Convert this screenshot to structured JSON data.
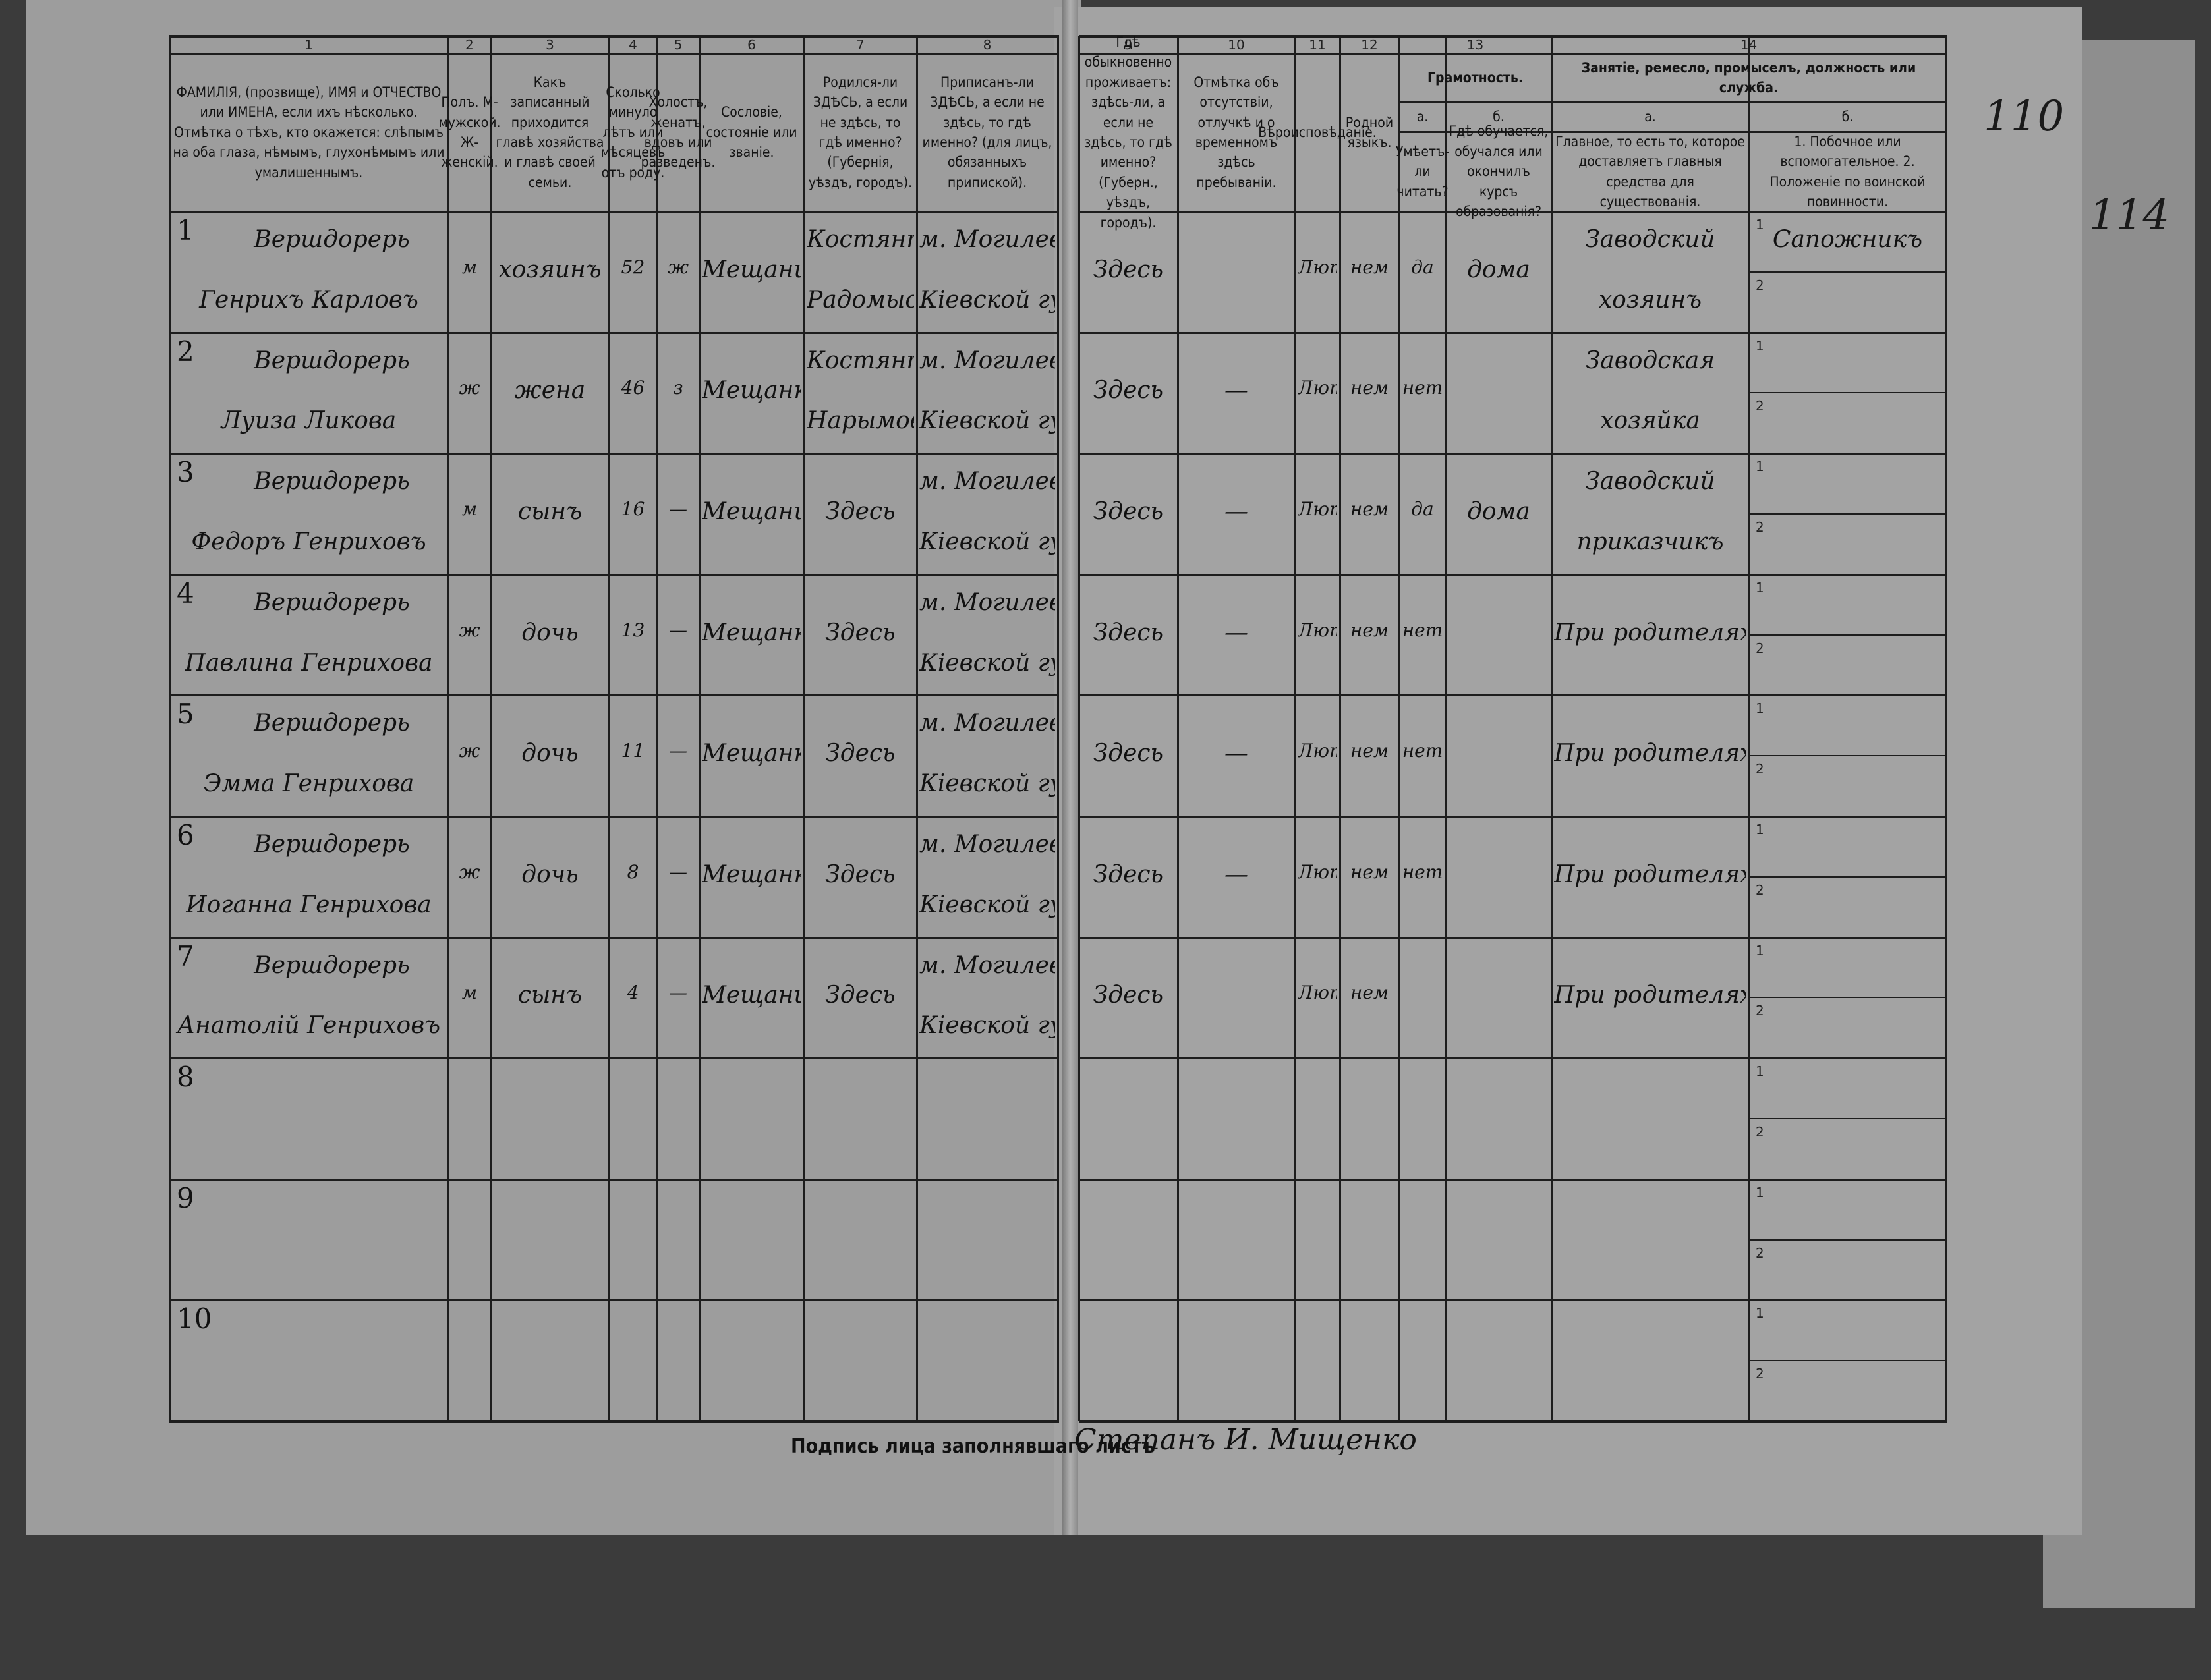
{
  "header": {
    "numbers": [
      "1",
      "2",
      "3",
      "4",
      "5",
      "6",
      "7",
      "8",
      "9",
      "10",
      "11",
      "12",
      "13",
      "14"
    ],
    "columns": [
      "ФАМИЛІЯ, (прозвище), ИМЯ и ОТЧЕСТВО или ИМЕНА, если ихъ нѣсколько. Отмѣтка о тѣхъ, кто окажется: слѣпымъ на оба глаза, нѣмымъ, глухонѣмымъ или умалишеннымъ.",
      "Полъ. М-мужской. Ж-женскій.",
      "Какъ записанный приходится главѣ хозяйства и главѣ своей семьи.",
      "Сколько минуло лѣтъ или мѣсяцевъ отъ роду.",
      "Холостъ, женатъ, вдовъ или разведенъ.",
      "Сословіе, состояніе или званіе.",
      "Родился-ли ЗДѢСЬ, а если не здѣсь, то гдѣ именно? (Губернія, уѣздъ, городъ).",
      "Приписанъ-ли ЗДѢСЬ, а если не здѣсь, то гдѣ именно? (для лицъ, обязанныхъ припиской).",
      "Гдѣ обыкновенно проживаетъ: здѣсь-ли, а если не здѣсь, то гдѣ именно? (Губерн., уѣздъ, городъ).",
      "Отмѣтка объ отсутствіи, отлучкѣ и о временномъ здѣсь пребываніи.",
      "Вѣроисповѣданіе.",
      "Родной языкъ."
    ],
    "literacy": {
      "title": "Грамотность.",
      "a": "а.",
      "a_text": "Умѣетъ-ли читать?",
      "b": "б.",
      "b_text": "Гдѣ обучается, обучался или окончилъ курсъ образованія?"
    },
    "occupation": {
      "title": "Занятіе, ремесло, промыселъ, должность или служба.",
      "a": "а.",
      "a_text": "Главное, то есть то, которое доставляетъ главныя средства для существованія.",
      "b": "б.",
      "b_text": "1. Побочное или вспомогательное. 2. Положеніе по воинской повинности."
    }
  },
  "sub_labels": [
    "1",
    "2"
  ],
  "rows": [
    {
      "no": "1",
      "cells": [
        [
          "Вершдорерь",
          "Генрихъ Карловъ"
        ],
        [
          "м"
        ],
        [
          "хозяинъ"
        ],
        [
          "52"
        ],
        [
          "ж"
        ],
        [
          "Мещанинъ"
        ],
        [
          "Костянтиновка",
          "Радомысльск."
        ],
        [
          "м. Могилевъ",
          "Кіевской губ."
        ],
        [
          "Здесь"
        ],
        [],
        [
          "Лют"
        ],
        [
          "нем"
        ],
        [
          "да"
        ],
        [
          "дома"
        ],
        [
          "Заводский",
          "хозяинъ"
        ],
        [
          "Сапожникъ"
        ]
      ]
    },
    {
      "no": "2",
      "cells": [
        [
          "Вершдорерь",
          "Луиза Ликова"
        ],
        [
          "ж"
        ],
        [
          "жена"
        ],
        [
          "46"
        ],
        [
          "з"
        ],
        [
          "Мещанка"
        ],
        [
          "Костянтиновка",
          "Нарымовка"
        ],
        [
          "м. Могилевъ",
          "Кіевской губ."
        ],
        [
          "Здесь"
        ],
        [
          "—"
        ],
        [
          "Лют"
        ],
        [
          "нем"
        ],
        [
          "нет"
        ],
        [],
        [
          "Заводская",
          "хозяйка"
        ],
        []
      ]
    },
    {
      "no": "3",
      "cells": [
        [
          "Вершдорерь",
          "Федоръ Генриховъ"
        ],
        [
          "м"
        ],
        [
          "сынъ"
        ],
        [
          "16"
        ],
        [
          "—"
        ],
        [
          "Мещанинъ"
        ],
        [
          "Здесь"
        ],
        [
          "м. Могилевъ",
          "Кіевской губ."
        ],
        [
          "Здесь"
        ],
        [
          "—"
        ],
        [
          "Лют"
        ],
        [
          "нем"
        ],
        [
          "да"
        ],
        [
          "дома"
        ],
        [
          "Заводский",
          "приказчикъ"
        ],
        []
      ]
    },
    {
      "no": "4",
      "cells": [
        [
          "Вершдорерь",
          "Павлина Генрихова"
        ],
        [
          "ж"
        ],
        [
          "дочь"
        ],
        [
          "13"
        ],
        [
          "—"
        ],
        [
          "Мещанка"
        ],
        [
          "Здесь"
        ],
        [
          "м. Могилевъ",
          "Кіевской губ."
        ],
        [
          "Здесь"
        ],
        [
          "—"
        ],
        [
          "Лют"
        ],
        [
          "нем"
        ],
        [
          "нет"
        ],
        [],
        [
          "При родителяхъ"
        ],
        []
      ]
    },
    {
      "no": "5",
      "cells": [
        [
          "Вершдорерь",
          "Эмма Генрихова"
        ],
        [
          "ж"
        ],
        [
          "дочь"
        ],
        [
          "11"
        ],
        [
          "—"
        ],
        [
          "Мещанка"
        ],
        [
          "Здесь"
        ],
        [
          "м. Могилевъ",
          "Кіевской губ."
        ],
        [
          "Здесь"
        ],
        [
          "—"
        ],
        [
          "Лют"
        ],
        [
          "нем"
        ],
        [
          "нет"
        ],
        [],
        [
          "При родителяхъ"
        ],
        []
      ]
    },
    {
      "no": "6",
      "cells": [
        [
          "Вершдорерь",
          "Иоганна Генрихова"
        ],
        [
          "ж"
        ],
        [
          "дочь"
        ],
        [
          "8"
        ],
        [
          "—"
        ],
        [
          "Мещанка"
        ],
        [
          "Здесь"
        ],
        [
          "м. Могилевъ",
          "Кіевской губ."
        ],
        [
          "Здесь"
        ],
        [
          "—"
        ],
        [
          "Лют"
        ],
        [
          "нем"
        ],
        [
          "нет"
        ],
        [],
        [
          "При родителяхъ"
        ],
        []
      ]
    },
    {
      "no": "7",
      "cells": [
        [
          "Вершдорерь",
          "Анатолій Генриховъ"
        ],
        [
          "м"
        ],
        [
          "сынъ"
        ],
        [
          "4"
        ],
        [
          "—"
        ],
        [
          "Мещанинъ"
        ],
        [
          "Здесь"
        ],
        [
          "м. Могилевъ",
          "Кіевской губ."
        ],
        [
          "Здесь"
        ],
        [],
        [
          "Лют"
        ],
        [
          "нем"
        ],
        [],
        [],
        [
          "При родителяхъ"
        ],
        []
      ]
    },
    {
      "no": "8"
    },
    {
      "no": "9"
    },
    {
      "no": "10"
    }
  ],
  "signature": {
    "label": "Подпись лица заполнявшаго листъ",
    "text": "Степанъ И. Мищенко"
  },
  "margin_notes": [
    "110",
    "114"
  ]
}
